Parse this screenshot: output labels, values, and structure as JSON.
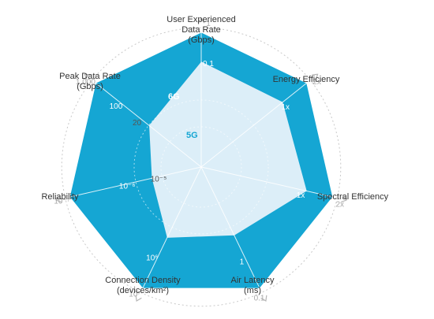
{
  "colors": {
    "outer_fill": "#15a6d3",
    "inner_fill": "#dceef8",
    "inner_stroke": "#15a6d3",
    "grid": "#c9c9c9",
    "tick_outer": "#a9a9a9",
    "label_text": "#333333",
    "series_6g_text": "#ffffff",
    "series_5g_text": "#15a6d3"
  },
  "chart_data": {
    "type": "radar",
    "title": "",
    "axes": [
      {
        "label_lines": [
          "User Experienced",
          "Data Rate",
          "(Gbps)"
        ],
        "ticks": [
          "1",
          "0.1"
        ]
      },
      {
        "label_lines": [
          "Energy Efficiency"
        ],
        "ticks": [
          "2x",
          "1x"
        ]
      },
      {
        "label_lines": [
          "Spectral Efficiency"
        ],
        "ticks": [
          "2x",
          "1x"
        ]
      },
      {
        "label_lines": [
          "Air Latency",
          "(ms)"
        ],
        "ticks": [
          "0.1",
          "1"
        ]
      },
      {
        "label_lines": [
          "Connection Density",
          "(devices/km²)"
        ],
        "ticks": [
          "10⁷",
          "10⁶"
        ]
      },
      {
        "label_lines": [
          "Reliability"
        ],
        "ticks": [
          "10⁻⁷",
          "10⁻⁶",
          "10⁻⁵"
        ]
      },
      {
        "label_lines": [
          "Peak Data Rate",
          "(Gbps)"
        ],
        "ticks": [
          "1,000",
          "100",
          "20"
        ]
      }
    ],
    "series": [
      {
        "name": "6G",
        "values": [
          1,
          1,
          1,
          1,
          1,
          1,
          1
        ]
      },
      {
        "name": "5G",
        "values": [
          0.79,
          0.78,
          0.81,
          0.57,
          0.59,
          0.38,
          0.5
        ]
      }
    ]
  }
}
